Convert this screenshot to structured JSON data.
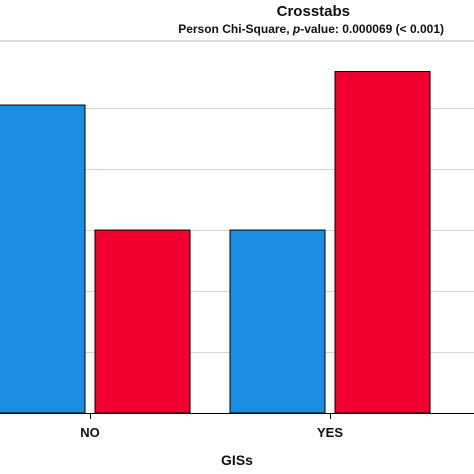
{
  "chart_data": {
    "type": "bar",
    "title": "Crosstabs",
    "subtitle": {
      "prefix": "Person Chi-Square, ",
      "p_symbol": "p",
      "suffix": "-value: 0.000069 (< 0.001)"
    },
    "xlabel": "GISs",
    "ylabel": "",
    "categories": [
      "NO",
      "YES"
    ],
    "series": [
      {
        "values": [
          50.5,
          30.0
        ],
        "color": "#1b8de0"
      },
      {
        "values": [
          30.0,
          56.0
        ],
        "color": "#f2002f"
      }
    ],
    "ylim": [
      0,
      61
    ],
    "gridlines": [
      10,
      20,
      30,
      40,
      50
    ],
    "grid": true,
    "legend": "none"
  }
}
